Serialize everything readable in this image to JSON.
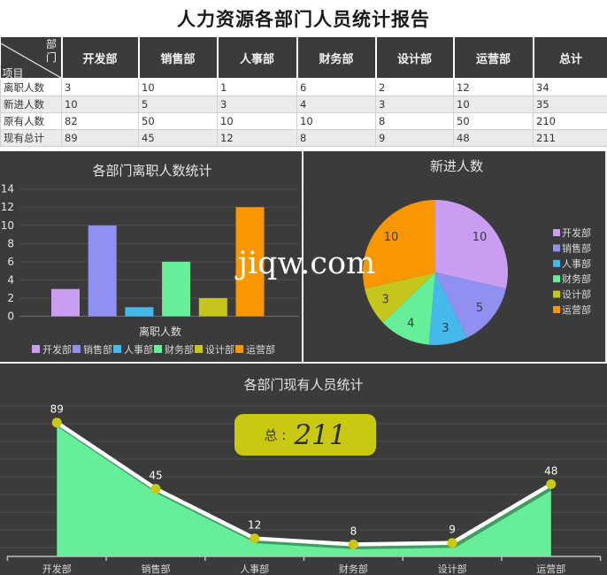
{
  "title": "人力资源各部门人员统计报告",
  "watermark": "jiqw.com",
  "table": {
    "corner": {
      "top_right": "部门",
      "bottom_left": "项目"
    },
    "columns": [
      "开发部",
      "销售部",
      "人事部",
      "财务部",
      "设计部",
      "运营部",
      "总计"
    ],
    "rows": [
      {
        "label": "离职人数",
        "values": [
          3,
          10,
          1,
          6,
          2,
          12,
          34
        ]
      },
      {
        "label": "新进人数",
        "values": [
          10,
          5,
          3,
          4,
          3,
          10,
          35
        ]
      },
      {
        "label": "原有人数",
        "values": [
          82,
          50,
          10,
          10,
          8,
          50,
          210
        ]
      },
      {
        "label": "现有总计",
        "values": [
          89,
          45,
          12,
          8,
          9,
          48,
          211
        ]
      }
    ]
  },
  "chart_data": [
    {
      "type": "bar",
      "title": "各部门离职人数统计",
      "categories": [
        "开发部",
        "销售部",
        "人事部",
        "财务部",
        "设计部",
        "运营部"
      ],
      "values": [
        3,
        10,
        1,
        6,
        2,
        12
      ],
      "xlabel": "离职人数",
      "ylabel": "",
      "ylim": [
        0,
        14
      ],
      "ytick_step": 2,
      "grid": true,
      "legend_position": "bottom"
    },
    {
      "type": "pie",
      "title": "新进人数",
      "categories": [
        "开发部",
        "销售部",
        "人事部",
        "财务部",
        "设计部",
        "运营部"
      ],
      "values": [
        10,
        5,
        3,
        4,
        3,
        10
      ],
      "labels_shown": true,
      "legend_position": "right"
    },
    {
      "type": "area",
      "title": "各部门现有人员统计",
      "categories": [
        "开发部",
        "销售部",
        "人事部",
        "财务部",
        "设计部",
        "运营部"
      ],
      "values": [
        89,
        45,
        12,
        8,
        9,
        48
      ],
      "total_label": "总 :",
      "total_value": "211",
      "ylim": [
        0,
        100
      ],
      "grid": true,
      "legend_position": "none",
      "line_color": "#FFFFFF",
      "fill_color": "#66EE99",
      "marker_color": "#C9C911"
    }
  ],
  "theme": {
    "panel_bg": "#3B3B3B",
    "grid_color": "#4E4E4E",
    "axis_text": "#E6E6E6",
    "legend_text": "#D9D9D9",
    "pie_label_text": "#3C3C3C",
    "series_colors": [
      "#C89DF2",
      "#9090F0",
      "#45B8EC",
      "#66EE99",
      "#C5C51C",
      "#F89702"
    ],
    "table_header_bg": "#3B3B3B",
    "table_alt_row": "#EBEBEB",
    "total_box_bg": "#C9C911"
  }
}
